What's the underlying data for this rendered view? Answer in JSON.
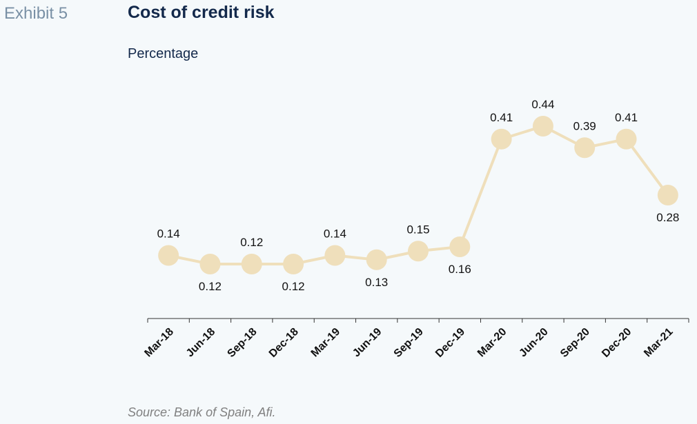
{
  "exhibit_label": "Exhibit 5",
  "title": "Cost of credit risk",
  "subtitle": "Percentage",
  "source": "Source: Bank of Spain, Afi.",
  "colors": {
    "line": "#efdfbb",
    "marker": "#efdfbb",
    "title": "#13294b",
    "exhibit": "#7990a5"
  },
  "chart_data": {
    "type": "line",
    "title": "Cost of credit risk",
    "ylabel": "Percentage",
    "categories": [
      "Mar-18",
      "Jun-18",
      "Sep-18",
      "Dec-18",
      "Mar-19",
      "Jun-19",
      "Sep-19",
      "Dec-19",
      "Mar-20",
      "Jun-20",
      "Sep-20",
      "Dec-20",
      "Mar-21"
    ],
    "values": [
      0.14,
      0.12,
      0.12,
      0.12,
      0.14,
      0.13,
      0.15,
      0.16,
      0.41,
      0.44,
      0.39,
      0.41,
      0.28
    ],
    "labels": [
      "0.14",
      "0.12",
      "0.12",
      "0.12",
      "0.14",
      "0.13",
      "0.15",
      "0.16",
      "0.41",
      "0.44",
      "0.39",
      "0.41",
      "0.28"
    ],
    "ylim": [
      0,
      0.5
    ],
    "grid": false,
    "legend": "none"
  }
}
